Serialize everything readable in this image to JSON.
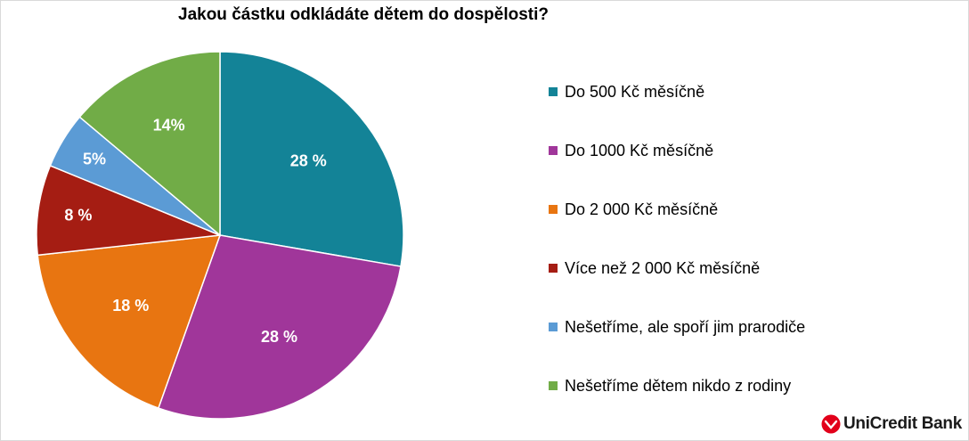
{
  "chart_data": {
    "type": "pie",
    "title": "Jakou částku odkládáte dětem do dospělosti?",
    "unit": "%",
    "categories": [
      "Do 500 Kč měsíčně",
      "Do 1000 Kč měsíčně",
      "Do 2 000 Kč měsíčně",
      "Více než 2 000 Kč měsíčně",
      "Nešetříme, ale spoří jim prarodiče",
      "Nešetříme dětem nikdo z rodiny"
    ],
    "values": [
      28,
      28,
      18,
      8,
      5,
      14
    ],
    "value_labels": [
      "28 %",
      "28 %",
      "18 %",
      "8 %",
      "5%",
      "14%"
    ],
    "colors": [
      "#138397",
      "#A0369A",
      "#E87511",
      "#A51D13",
      "#5B9BD5",
      "#71AC47"
    ],
    "legend_position": "right"
  },
  "branding": {
    "logo_text": "UniCredit Bank",
    "logo_color": "#E2001A"
  }
}
